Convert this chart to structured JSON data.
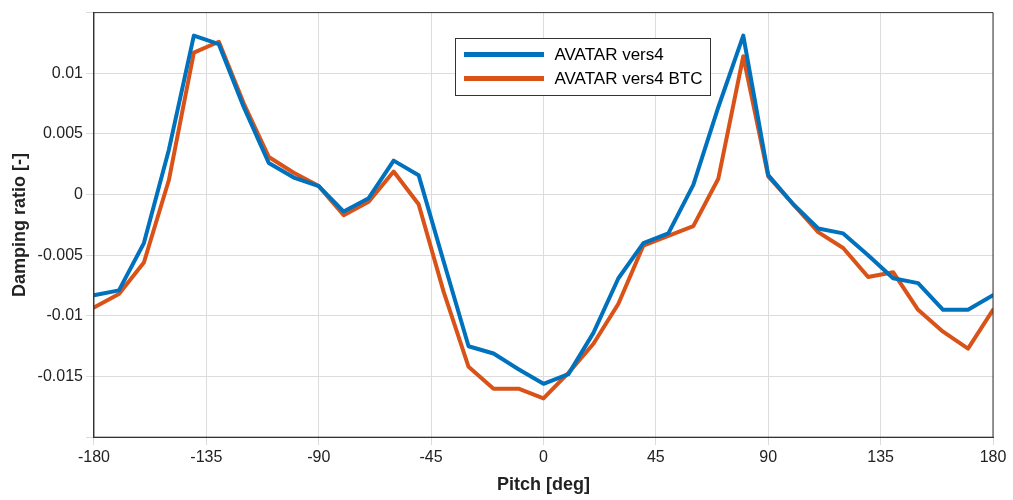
{
  "chart_data": {
    "type": "line",
    "xlabel": "Pitch [deg]",
    "ylabel": "Damping ratio [-]",
    "x": [
      -180,
      -170,
      -160,
      -150,
      -140,
      -130,
      -120,
      -110,
      -100,
      -90,
      -80,
      -70,
      -60,
      -50,
      -40,
      -30,
      -20,
      -10,
      0,
      10,
      20,
      30,
      40,
      50,
      60,
      70,
      80,
      90,
      100,
      110,
      120,
      130,
      140,
      150,
      160,
      170,
      180
    ],
    "series": [
      {
        "name": "AVATAR vers4",
        "color": "#0072bd",
        "values": [
          -0.0083,
          -0.0079,
          -0.004,
          0.0037,
          0.0131,
          0.0124,
          0.0072,
          0.0026,
          0.0014,
          0.0007,
          -0.0014,
          -0.0003,
          0.0028,
          0.0016,
          -0.0055,
          -0.0125,
          -0.0131,
          -0.0144,
          -0.0156,
          -0.0148,
          -0.0114,
          -0.0069,
          -0.004,
          -0.0032,
          0.0008,
          0.0072,
          0.0131,
          0.0016,
          -0.0008,
          -0.0028,
          -0.0032,
          -0.005,
          -0.0069,
          -0.0073,
          -0.0095,
          -0.0095,
          -0.0083
        ]
      },
      {
        "name": "AVATAR vers4 BTC",
        "color": "#d95319",
        "values": [
          -0.0093,
          -0.0082,
          -0.0056,
          0.0012,
          0.0117,
          0.0126,
          0.0075,
          0.0031,
          0.0018,
          0.0007,
          -0.0017,
          -0.0006,
          0.0019,
          -0.0008,
          -0.008,
          -0.0142,
          -0.016,
          -0.016,
          -0.0168,
          -0.0147,
          -0.0123,
          -0.009,
          -0.0042,
          -0.0034,
          -0.0026,
          0.0013,
          0.0114,
          0.0015,
          -0.0008,
          -0.0031,
          -0.0044,
          -0.0068,
          -0.0064,
          -0.0095,
          -0.0113,
          -0.0127,
          -0.0095
        ]
      }
    ],
    "xlim": [
      -180,
      180
    ],
    "xticks": [
      -180,
      -135,
      -90,
      -45,
      0,
      45,
      90,
      135,
      180
    ],
    "ylim": [
      -0.02,
      0.015
    ],
    "yticks": [
      {
        "value": -0.02,
        "label": null
      },
      -0.015,
      -0.01,
      -0.005,
      0,
      0.005,
      0.01,
      {
        "value": 0.015,
        "label": null
      }
    ],
    "grid": true,
    "legend": "top",
    "marker": "none",
    "line_style": "solid"
  }
}
